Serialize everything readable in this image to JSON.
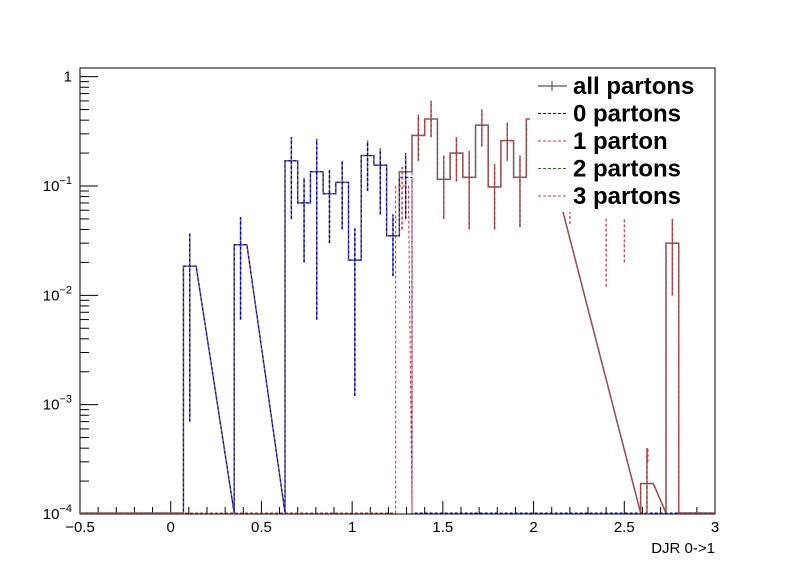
{
  "chart_data": {
    "type": "histogram",
    "title": "",
    "xlabel": "DJR 0->1",
    "ylabel": "",
    "xlim": [
      -0.5,
      3.0
    ],
    "ylim": [
      0.0001,
      1.2
    ],
    "yscale": "log",
    "grid": false,
    "legend_position": "top-right",
    "x_ticks": [
      {
        "value": -0.5,
        "label": "−0.5"
      },
      {
        "value": 0,
        "label": "0"
      },
      {
        "value": 0.5,
        "label": "0.5"
      },
      {
        "value": 1,
        "label": "1"
      },
      {
        "value": 1.5,
        "label": "1.5"
      },
      {
        "value": 2,
        "label": "2"
      },
      {
        "value": 2.5,
        "label": "2.5"
      },
      {
        "value": 3,
        "label": "3"
      }
    ],
    "y_ticks": [
      {
        "value": 0.0001,
        "base": "10",
        "exp": "−4"
      },
      {
        "value": 0.001,
        "base": "10",
        "exp": "−3"
      },
      {
        "value": 0.01,
        "base": "10",
        "exp": "−2"
      },
      {
        "value": 0.1,
        "base": "10",
        "exp": "−1"
      },
      {
        "value": 1,
        "base": "1",
        "exp": ""
      }
    ],
    "series": [
      {
        "name": "all partons",
        "color": "#707070",
        "style": "solid",
        "marker": "cross",
        "bins": [
          [
            0.07,
            0.14,
            0.0185,
            0.0007,
            0.037
          ],
          [
            0.35,
            0.42,
            0.029,
            0.006,
            0.052
          ],
          [
            0.63,
            0.7,
            0.17,
            0.05,
            0.28
          ],
          [
            0.7,
            0.77,
            0.07,
            0.02,
            0.12
          ],
          [
            0.77,
            0.84,
            0.135,
            0.006,
            0.27
          ],
          [
            0.84,
            0.91,
            0.085,
            0.03,
            0.14
          ],
          [
            0.91,
            0.98,
            0.108,
            0.04,
            0.17
          ],
          [
            0.98,
            1.05,
            0.021,
            0.0012,
            0.041
          ],
          [
            1.05,
            1.12,
            0.19,
            0.09,
            0.26
          ],
          [
            1.12,
            1.19,
            0.155,
            0.055,
            0.22
          ],
          [
            1.19,
            1.26,
            0.035,
            0.015,
            0.055
          ],
          [
            1.26,
            1.33,
            0.135,
            0.05,
            0.2
          ],
          [
            1.33,
            1.4,
            0.29,
            0.17,
            0.45
          ],
          [
            1.4,
            1.47,
            0.41,
            0.28,
            0.6
          ],
          [
            1.47,
            1.54,
            0.115,
            0.05,
            0.19
          ],
          [
            1.54,
            1.61,
            0.2,
            0.11,
            0.28
          ],
          [
            1.61,
            1.68,
            0.12,
            0.04,
            0.21
          ],
          [
            1.68,
            1.75,
            0.36,
            0.23,
            0.5
          ],
          [
            1.75,
            1.82,
            0.098,
            0.04,
            0.16
          ],
          [
            1.82,
            1.89,
            0.26,
            0.17,
            0.38
          ],
          [
            1.89,
            1.96,
            0.12,
            0.042,
            0.19
          ],
          [
            1.96,
            2.03,
            0.41,
            0.26,
            0.5
          ],
          [
            2.59,
            2.66,
            0.00019,
            0.0001,
            0.0004
          ],
          [
            2.73,
            2.8,
            0.03,
            0.01,
            0.05
          ]
        ]
      },
      {
        "name": "0 partons",
        "color": "#0000cc",
        "style": "dashed",
        "bins": [
          [
            0.07,
            0.14,
            0.0185,
            0.0007,
            0.037
          ],
          [
            0.35,
            0.42,
            0.029,
            0.006,
            0.052
          ],
          [
            0.63,
            0.7,
            0.17,
            0.05,
            0.28
          ],
          [
            0.7,
            0.77,
            0.07,
            0.02,
            0.12
          ],
          [
            0.77,
            0.84,
            0.135,
            0.006,
            0.27
          ],
          [
            0.84,
            0.91,
            0.085,
            0.03,
            0.14
          ],
          [
            0.91,
            0.98,
            0.108,
            0.04,
            0.17
          ],
          [
            0.98,
            1.05,
            0.021,
            0.0012,
            0.041
          ],
          [
            1.05,
            1.12,
            0.19,
            0.09,
            0.26
          ],
          [
            1.12,
            1.19,
            0.155,
            0.055,
            0.22
          ],
          [
            1.19,
            1.26,
            0.035,
            0.015,
            0.055
          ],
          [
            1.26,
            1.33,
            0.12,
            0.05,
            0.2
          ]
        ]
      },
      {
        "name": "1 parton",
        "color": "#d03030",
        "style": "dashed",
        "bins": [
          [
            1.24,
            1.31,
            0.1,
            0.04,
            0.15
          ],
          [
            1.33,
            1.4,
            0.29,
            0.17,
            0.45
          ],
          [
            1.4,
            1.47,
            0.41,
            0.28,
            0.6
          ],
          [
            1.47,
            1.54,
            0.115,
            0.05,
            0.19
          ],
          [
            1.54,
            1.61,
            0.2,
            0.11,
            0.28
          ],
          [
            1.61,
            1.68,
            0.12,
            0.04,
            0.21
          ],
          [
            1.68,
            1.75,
            0.36,
            0.23,
            0.5
          ],
          [
            1.75,
            1.82,
            0.098,
            0.04,
            0.16
          ],
          [
            1.82,
            1.89,
            0.26,
            0.17,
            0.38
          ],
          [
            1.89,
            1.96,
            0.12,
            0.042,
            0.19
          ],
          [
            1.96,
            2.03,
            0.41,
            0.26,
            0.5
          ],
          [
            2.59,
            2.66,
            0.00019,
            0.0001,
            0.0004
          ],
          [
            2.73,
            2.8,
            0.03,
            0.01,
            0.05
          ]
        ]
      },
      {
        "name": "2 partons",
        "color": "#207020",
        "style": "dashed",
        "bins": []
      },
      {
        "name": "3 partons",
        "color": "#e03030",
        "style": "dashed",
        "bins": []
      }
    ],
    "extra_error_bars": [
      [
        2.2,
        0.045,
        0.06
      ],
      [
        2.4,
        0.012,
        0.05
      ],
      [
        2.5,
        0.02,
        0.05
      ],
      [
        2.63,
        0.0003,
        0.0004
      ]
    ]
  }
}
